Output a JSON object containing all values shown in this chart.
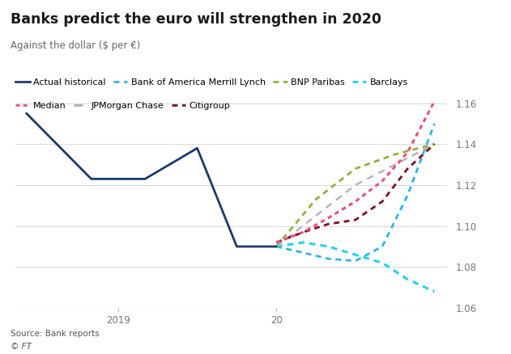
{
  "title": "Banks predict the euro will strengthen in 2020",
  "subtitle": "Against the dollar ($ per €)",
  "source": "Source: Bank reports\n© FT",
  "ylim": [
    1.06,
    1.168
  ],
  "yticks": [
    1.06,
    1.08,
    1.1,
    1.12,
    1.14,
    1.16
  ],
  "background_color": "#ffffff",
  "actual_historical": {
    "label": "Actual historical",
    "color": "#1a3a6b",
    "x": [
      2018.42,
      2018.83,
      2019.17,
      2019.5,
      2019.75,
      2020.0
    ],
    "y": [
      1.155,
      1.123,
      1.123,
      1.138,
      1.09,
      1.09
    ]
  },
  "median": {
    "label": "Median",
    "color": "#e8508a",
    "x": [
      2020.0,
      2020.17,
      2020.33,
      2020.5,
      2020.67,
      2020.83,
      2021.0
    ],
    "y": [
      1.092,
      1.097,
      1.104,
      1.112,
      1.122,
      1.136,
      1.161
    ]
  },
  "bofa": {
    "label": "Bank of America Merrill Lynch",
    "color": "#2bb5e8",
    "x": [
      2020.0,
      2020.17,
      2020.33,
      2020.5,
      2020.67,
      2020.83,
      2021.0
    ],
    "y": [
      1.09,
      1.087,
      1.084,
      1.083,
      1.09,
      1.115,
      1.15
    ]
  },
  "bnp": {
    "label": "BNP Paribas",
    "color": "#8db33a",
    "x": [
      2020.0,
      2020.25,
      2020.5,
      2020.75,
      2021.0
    ],
    "y": [
      1.09,
      1.113,
      1.128,
      1.135,
      1.14
    ]
  },
  "barclays": {
    "label": "Barclays",
    "color": "#22d4e8",
    "x": [
      2020.0,
      2020.17,
      2020.33,
      2020.5,
      2020.67,
      2020.83,
      2021.0
    ],
    "y": [
      1.09,
      1.092,
      1.09,
      1.086,
      1.082,
      1.074,
      1.068
    ]
  },
  "jpmorgan": {
    "label": "JPMorgan Chase",
    "color": "#b0b0b0",
    "x": [
      2020.0,
      2020.5,
      2021.0
    ],
    "y": [
      1.09,
      1.12,
      1.14
    ]
  },
  "citigroup": {
    "label": "Citigroup",
    "color": "#7b1020",
    "x": [
      2020.0,
      2020.17,
      2020.33,
      2020.5,
      2020.67,
      2020.83,
      2021.0
    ],
    "y": [
      1.092,
      1.097,
      1.101,
      1.103,
      1.112,
      1.128,
      1.14
    ]
  },
  "xticks": [
    2019.0,
    2020.0
  ],
  "xticklabels": [
    "2019",
    "20"
  ],
  "xlim": [
    2018.35,
    2021.08
  ]
}
